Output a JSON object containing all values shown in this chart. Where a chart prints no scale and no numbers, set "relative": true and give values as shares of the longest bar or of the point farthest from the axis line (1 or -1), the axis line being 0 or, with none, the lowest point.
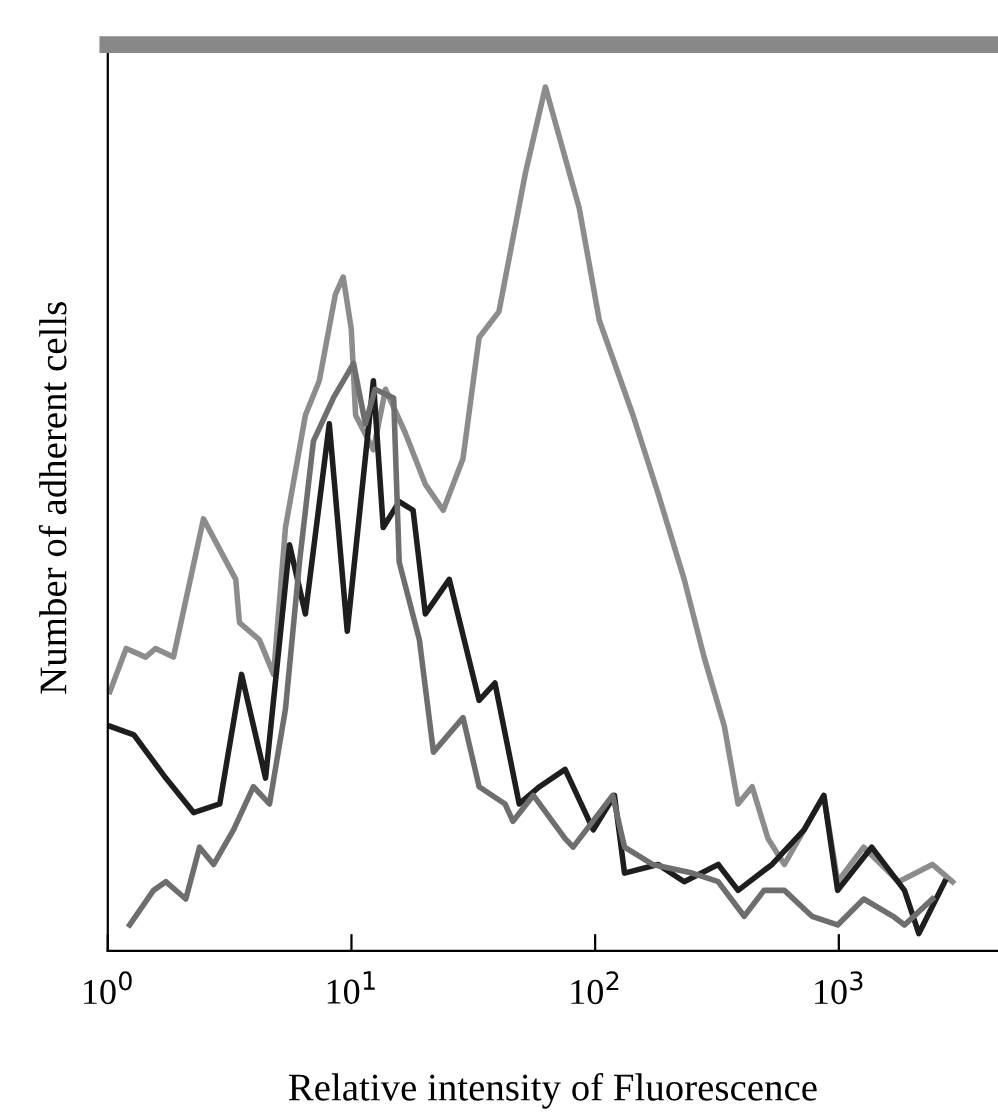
{
  "chart_data": {
    "type": "line",
    "relative": true,
    "log": "x",
    "xlabel": "Relative intensity of Fluorescence",
    "ylabel": "Number of adherent cells",
    "xlim": [
      1,
      4500
    ],
    "xticks": [
      {
        "value": 1,
        "label": "10$^{0}$"
      },
      {
        "value": 10,
        "label": "10$^{1}$"
      },
      {
        "value": 100,
        "label": "10$^{2}$"
      },
      {
        "value": 1000,
        "label": "10$^{3}$"
      }
    ],
    "grid": false,
    "legend": false,
    "marker": "none",
    "line_style": "solid",
    "series": [
      {
        "color": "#8c8c8c",
        "x": [
          1.02,
          1.19,
          1.43,
          1.57,
          1.86,
          2.47,
          3.35,
          3.47,
          4.19,
          4.79,
          5.36,
          6.47,
          7.38,
          8.59,
          9.25,
          9.98,
          10.4,
          12.3,
          13.8,
          16.6,
          20.1,
          23.8,
          28.7,
          33.4,
          40.3,
          51.7,
          62.5,
          86.0,
          104,
          143,
          181,
          232,
          280,
          339,
          386,
          441,
          512,
          598,
          720,
          868,
          989,
          1265,
          1760,
          2420,
          2930
        ],
        "values": [
          0.3,
          0.35,
          0.34,
          0.35,
          0.34,
          0.5,
          0.43,
          0.38,
          0.36,
          0.32,
          0.49,
          0.62,
          0.66,
          0.76,
          0.78,
          0.72,
          0.62,
          0.58,
          0.65,
          0.6,
          0.54,
          0.51,
          0.57,
          0.71,
          0.74,
          0.9,
          1.0,
          0.86,
          0.73,
          0.62,
          0.53,
          0.43,
          0.34,
          0.26,
          0.17,
          0.19,
          0.13,
          0.1,
          0.14,
          0.18,
          0.08,
          0.12,
          0.08,
          0.1,
          0.08
        ]
      },
      {
        "color": "#1e1e1e",
        "x": [
          1.02,
          1.28,
          1.73,
          2.25,
          2.88,
          3.54,
          4.44,
          5.57,
          6.47,
          8.11,
          9.61,
          12.3,
          13.5,
          15.7,
          17.9,
          20.1,
          25.2,
          33.4,
          38.8,
          48.8,
          59.1,
          75.3,
          98.3,
          120,
          132,
          181,
          232,
          320,
          386,
          532,
          720,
          868,
          989,
          1364,
          1860,
          2130,
          2720
        ],
        "values": [
          0.26,
          0.25,
          0.2,
          0.16,
          0.17,
          0.32,
          0.2,
          0.47,
          0.39,
          0.61,
          0.37,
          0.66,
          0.49,
          0.52,
          0.51,
          0.39,
          0.43,
          0.29,
          0.31,
          0.17,
          0.19,
          0.21,
          0.14,
          0.18,
          0.09,
          0.1,
          0.08,
          0.1,
          0.07,
          0.1,
          0.14,
          0.18,
          0.07,
          0.12,
          0.07,
          0.02,
          0.08
        ]
      },
      {
        "color": "#6e6e6e",
        "x": [
          1.23,
          1.54,
          1.73,
          2.09,
          2.38,
          2.72,
          3.28,
          3.96,
          4.61,
          5.36,
          6.12,
          6.98,
          8.43,
          10.2,
          11.4,
          12.5,
          14.9,
          15.7,
          19.0,
          21.7,
          28.7,
          33.4,
          42.7,
          46.0,
          55.8,
          75.3,
          81.2,
          118,
          132,
          172,
          250,
          320,
          409,
          493,
          598,
          776,
          989,
          1265,
          1670,
          1860,
          2420
        ],
        "values": [
          0.03,
          0.07,
          0.08,
          0.06,
          0.12,
          0.1,
          0.14,
          0.19,
          0.17,
          0.28,
          0.45,
          0.59,
          0.64,
          0.68,
          0.61,
          0.65,
          0.64,
          0.45,
          0.36,
          0.23,
          0.27,
          0.19,
          0.17,
          0.15,
          0.18,
          0.13,
          0.12,
          0.18,
          0.12,
          0.1,
          0.09,
          0.08,
          0.04,
          0.07,
          0.07,
          0.04,
          0.03,
          0.06,
          0.04,
          0.03,
          0.06
        ]
      }
    ]
  }
}
